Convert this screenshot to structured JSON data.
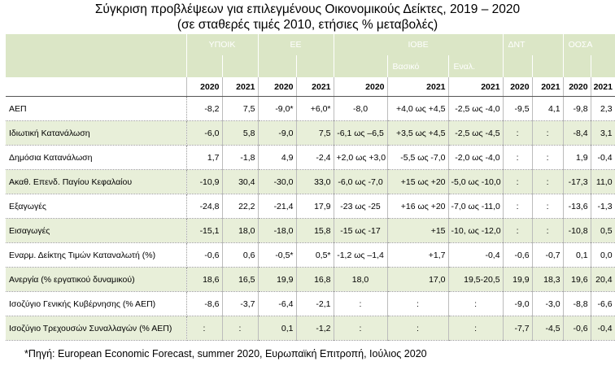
{
  "title": {
    "line1": "Σύγκριση προβλέψεων για επιλεγμένους Οικονομικούς Δείκτες, 2019 – 2020",
    "line2": "(σε σταθερές τιμές 2010, ετήσιες % μεταβολές)"
  },
  "groups": {
    "ypoik": "ΥΠΟΙΚ",
    "ee": "ΕΕ",
    "iove": "ΙΟΒΕ",
    "dnt": "ΔΝΤ",
    "oosa": "ΟΟΣΑ"
  },
  "subgroups": {
    "basic": "Βασικό",
    "alt": "Εναλ."
  },
  "years": [
    "2020",
    "2021",
    "2020",
    "2021",
    "2020",
    "2021",
    "2021",
    "2020",
    "2021",
    "2020",
    "2021"
  ],
  "rows": [
    {
      "label": "ΑΕΠ",
      "cells": [
        "-8,2",
        "7,5",
        "-9,0*",
        "+6,0*",
        "-8,0",
        "+4,0 ως +4,5",
        "-2,5 ως -4,0",
        "-9,5",
        "4,1",
        "-9,8",
        "2,3"
      ]
    },
    {
      "label": "Ιδιωτική Κατανάλωση",
      "cells": [
        "-6,0",
        "5,8",
        "-9,0",
        "7,5",
        "-6,1 ως –6,5",
        "+3,5 ως +4,5",
        "-2,5 ως -4,5",
        ":",
        ":",
        "-8,4",
        "3,1"
      ]
    },
    {
      "label": "Δημόσια Κατανάλωση",
      "cells": [
        "1,7",
        "-1,8",
        "4,9",
        "-2,4",
        "+2,0 ως +3,0",
        "-5,5 ως -7,0",
        "-2,0 ως -4,0",
        ":",
        ":",
        "1,9",
        "-0,4"
      ]
    },
    {
      "label": "Ακαθ. Επενδ. Παγίου Κεφαλαίου",
      "cells": [
        "-10,9",
        "30,4",
        "-30,0",
        "33,0",
        "-6,0 ως -7,0",
        "+15 ως +20",
        "-5,0 ως -10,0",
        ":",
        ":",
        "-17,3",
        "11,0"
      ]
    },
    {
      "label": "Εξαγωγές",
      "cells": [
        "-24,8",
        "22,2",
        "-21,4",
        "17,9",
        "-23 ως -25",
        "+16 ως +20",
        "-7,0 ως -11,0",
        ":",
        ":",
        "-13,6",
        "-1,3"
      ]
    },
    {
      "label": "Εισαγωγές",
      "cells": [
        "-15,1",
        "18,0",
        "-18,0",
        "15,8",
        "-15 ως -17",
        "+15",
        "-10, ως -12,0",
        ":",
        ":",
        "-10,8",
        "0,5"
      ]
    },
    {
      "label": "Εναρμ. Δείκτης Τιμών Καταναλωτή (%)",
      "cells": [
        "-0,6",
        "0,6",
        "-0,5*",
        "0,5*",
        "-1,2 ως –1,4",
        "+1,7",
        "-0,4",
        "-0,6",
        "-0,7",
        "0,1",
        "0,0"
      ]
    },
    {
      "label": "Ανεργία (% εργατικού δυναμικού)",
      "cells": [
        "18,6",
        "16,5",
        "19,9",
        "16,8",
        "18,0",
        "17,0",
        "19,5-20,5",
        "19,9",
        "18,3",
        "19,6",
        "20,4"
      ]
    },
    {
      "label": "Ισοζύγιο Γενικής Κυβέρνησης (% ΑΕΠ)",
      "cells": [
        "-8,6",
        "-3,7",
        "-6,4",
        "-2,1",
        ":",
        ":",
        ":",
        "-9,0",
        "-3,0",
        "-8,8",
        "-6,6"
      ]
    },
    {
      "label": "Ισοζύγιο Τρεχουσών Συναλλαγών (% ΑΕΠ)",
      "cells": [
        ":",
        ":",
        "0,1",
        "-1,2",
        ":",
        ":",
        ":",
        "-7,7",
        "-4,5",
        "-0,6",
        "-0,4"
      ]
    }
  ],
  "source": "*Πηγή: European Economic Forecast, summer 2020, Ευρωπαϊκή Επιτροπή, Ιούλιος 2020"
}
